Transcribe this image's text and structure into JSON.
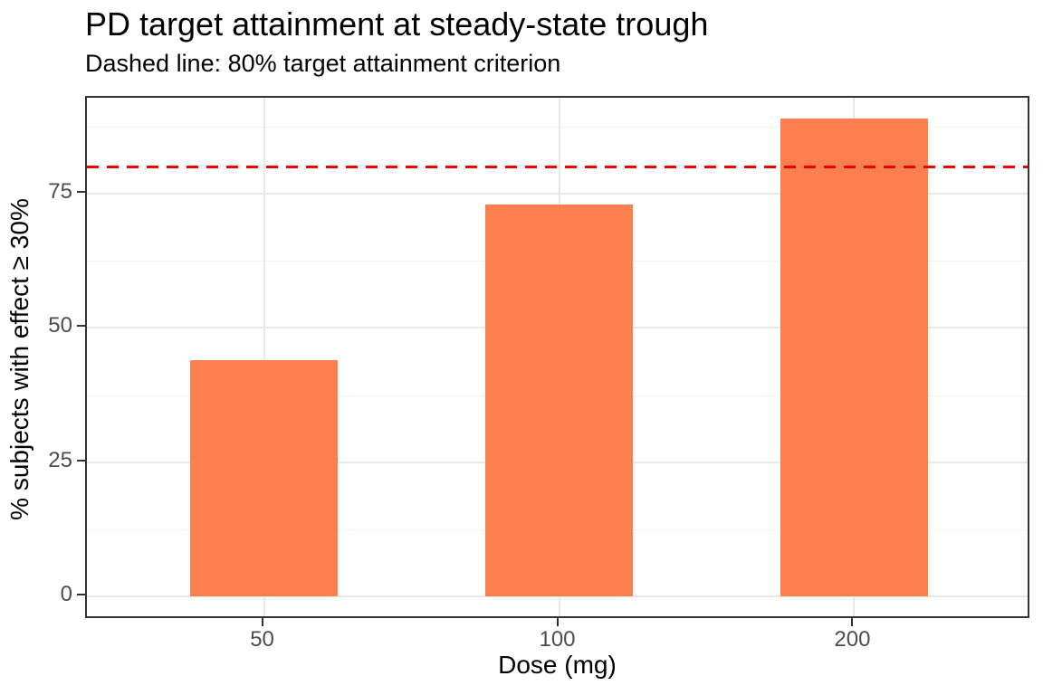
{
  "chart_data": {
    "type": "bar",
    "title": "PD target attainment at steady-state trough",
    "subtitle": "Dashed line: 80% target attainment criterion",
    "xlabel": "Dose (mg)",
    "ylabel": "% subjects with effect ≥ 30%",
    "categories": [
      "50",
      "100",
      "200"
    ],
    "values": [
      44,
      73,
      89
    ],
    "yticks": [
      0,
      25,
      50,
      75
    ],
    "yticks_minor": [
      12.5,
      37.5,
      62.5,
      87.5
    ],
    "ylim": [
      0,
      93
    ],
    "reference_line": {
      "value": 80,
      "style": "dashed",
      "meaning": "80% target attainment criterion"
    },
    "grid": "on",
    "legend": "none"
  },
  "colors": {
    "bar_fill": "#fc7f50",
    "reference_red": "#f20000",
    "grid_major": "#e8e8e8",
    "grid_minor": "#f3f3f3",
    "panel_border": "#333333",
    "tick_label": "#4d4d4d",
    "text": "#000000",
    "background": "#ffffff"
  }
}
